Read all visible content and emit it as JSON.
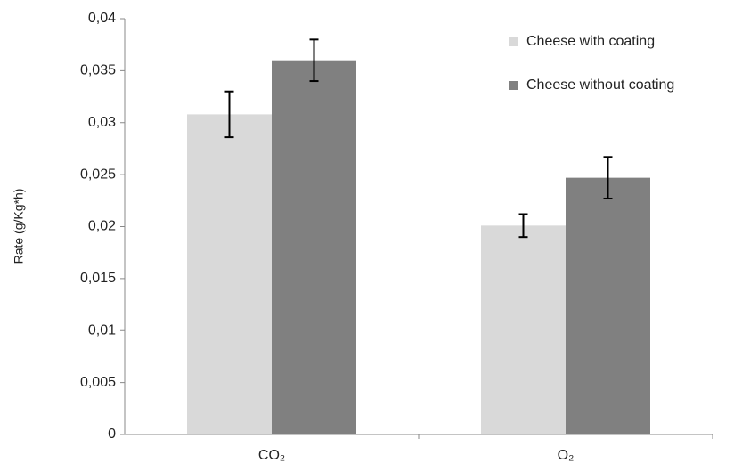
{
  "chart_data": {
    "type": "bar",
    "ylabel": "Rate (g/Kg*h)",
    "categories": [
      "CO₂",
      "O₂"
    ],
    "series": [
      {
        "name": "Cheese with coating",
        "color": "#d9d9d9",
        "values": [
          0.0308,
          0.0201
        ],
        "errors": [
          0.0022,
          0.0011
        ]
      },
      {
        "name": "Cheese without coating",
        "color": "#808080",
        "values": [
          0.036,
          0.0247
        ],
        "errors": [
          0.002,
          0.002
        ]
      }
    ],
    "ylim": [
      0,
      0.04
    ],
    "yticks": [
      0,
      {
        "value": 0.005,
        "label": "0,005"
      },
      {
        "value": 0.01,
        "label": "0,01"
      },
      {
        "value": 0.015,
        "label": "0,015"
      },
      {
        "value": 0.02,
        "label": "0,02"
      },
      {
        "value": 0.025,
        "label": "0,025"
      },
      {
        "value": 0.03,
        "label": "0,03"
      },
      {
        "value": 0.035,
        "label": "0,035"
      },
      {
        "value": 0.04,
        "label": "0,04"
      }
    ],
    "legend": "top-right"
  }
}
